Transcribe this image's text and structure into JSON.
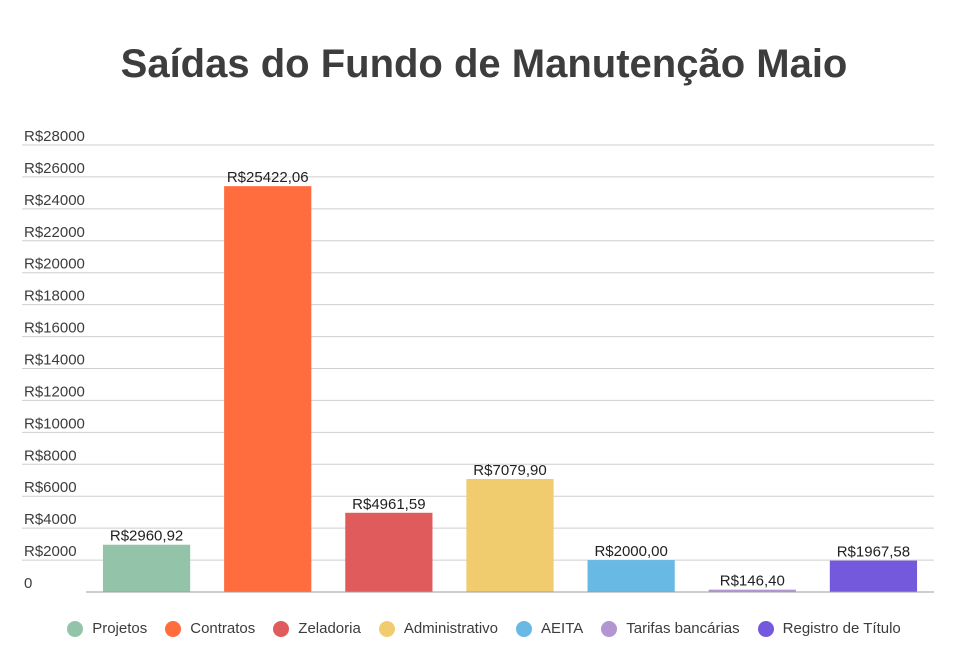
{
  "chart_data": {
    "type": "bar",
    "title": "Saídas do Fundo de Manutenção Maio",
    "xlabel": "",
    "ylabel": "",
    "ylim": [
      0,
      28000
    ],
    "y_ticks": [
      "0",
      "R$2000",
      "R$4000",
      "R$6000",
      "R$8000",
      "R$10000",
      "R$12000",
      "R$14000",
      "R$16000",
      "R$18000",
      "R$20000",
      "R$22000",
      "R$24000",
      "R$26000",
      "R$28000"
    ],
    "grid": true,
    "legend_position": "bottom",
    "series": [
      {
        "name": "Projetos",
        "value": 2960.92,
        "label": "R$2960,92",
        "color": "#93c4a9"
      },
      {
        "name": "Contratos",
        "value": 25422.06,
        "label": "R$25422,06",
        "color": "#ff6d3f"
      },
      {
        "name": "Zeladoria",
        "value": 4961.59,
        "label": "R$4961,59",
        "color": "#e05c5c"
      },
      {
        "name": "Administrativo",
        "value": 7079.9,
        "label": "R$7079,90",
        "color": "#f0cc6e"
      },
      {
        "name": "AEITA",
        "value": 2000.0,
        "label": "R$2000,00",
        "color": "#68b9e4"
      },
      {
        "name": "Tarifas bancárias",
        "value": 146.4,
        "label": "R$146,40",
        "color": "#b296d2"
      },
      {
        "name": "Registro de Título",
        "value": 1967.58,
        "label": "R$1967,58",
        "color": "#7459dd"
      }
    ]
  }
}
